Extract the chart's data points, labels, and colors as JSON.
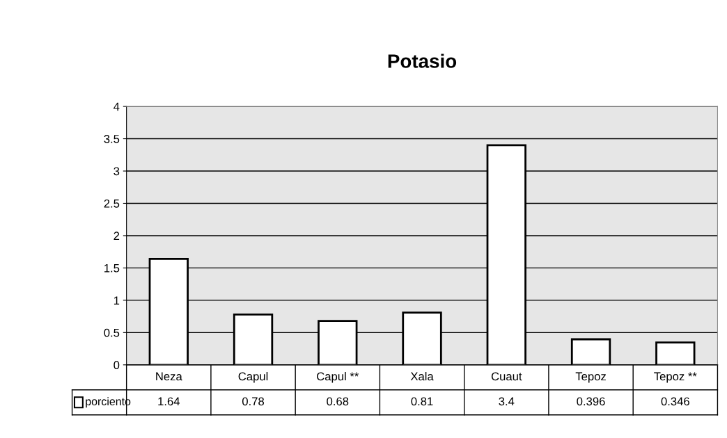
{
  "chart_data": {
    "type": "bar",
    "title": "Potasio",
    "categories": [
      "Neza",
      "Capul",
      "Capul **",
      "Xala",
      "Cuaut",
      "Tepoz",
      "Tepoz **"
    ],
    "series": [
      {
        "name": "porciento",
        "color": "#ffffff",
        "values": [
          1.64,
          0.78,
          0.68,
          0.81,
          3.4,
          0.396,
          0.346
        ]
      }
    ],
    "ylim": [
      0,
      4
    ],
    "yticks": [
      0,
      0.5,
      1,
      1.5,
      2,
      2.5,
      3,
      3.5,
      4
    ],
    "grid": "y",
    "data_labels": true
  }
}
